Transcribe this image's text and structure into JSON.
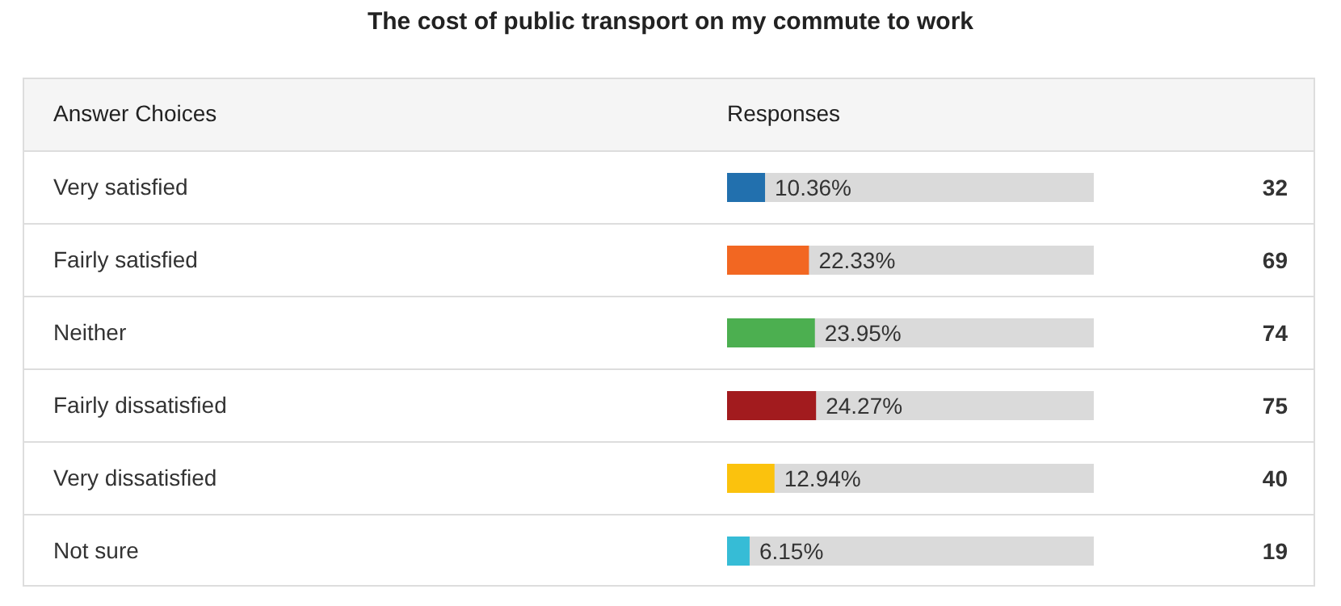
{
  "chart_data": {
    "type": "bar",
    "orientation": "horizontal",
    "title": "The cost of public transport on my commute to work",
    "ylabel": "Answer Choices",
    "xlabel": "Responses",
    "categories": [
      "Very satisfied",
      "Fairly satisfied",
      "Neither",
      "Fairly dissatisfied",
      "Very dissatisfied",
      "Not sure"
    ],
    "values": [
      10.36,
      22.33,
      23.95,
      24.27,
      12.94,
      6.15
    ],
    "colors": [
      "#2270ae",
      "#f26722",
      "#4caf50",
      "#a21b1e",
      "#fbc20d",
      "#36bcd6"
    ],
    "value_labels": [
      "10.36%",
      "22.33%",
      "23.95%",
      "24.27%",
      "12.94%",
      "6.15%"
    ],
    "xlim": [
      0,
      100
    ],
    "tick_labels": "y",
    "annotations": [
      "32",
      "69",
      "74",
      "75",
      "40",
      "19"
    ]
  }
}
